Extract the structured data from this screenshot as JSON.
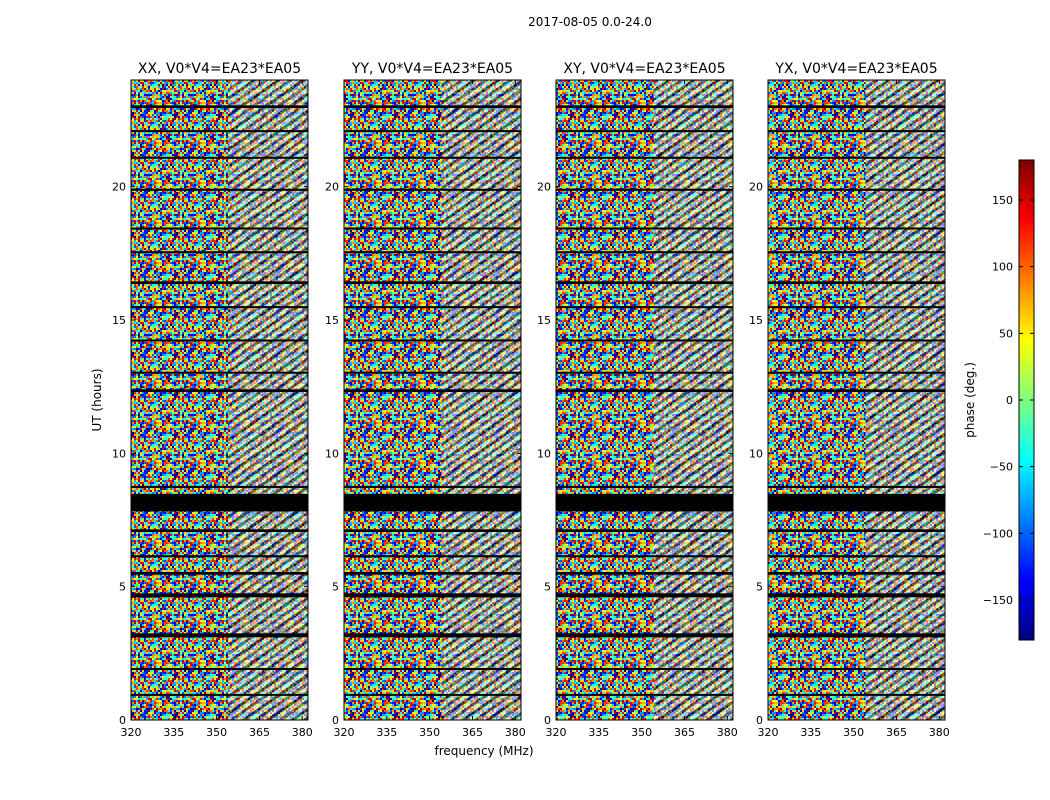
{
  "chart_data": {
    "type": "heatmap",
    "suptitle": "2017-08-05 0.0-24.0",
    "xlabel": "frequency (MHz)",
    "ylabel": "UT (hours)",
    "xlim": [
      320,
      382
    ],
    "ylim": [
      0,
      24
    ],
    "xticks": [
      320,
      335,
      350,
      365,
      380
    ],
    "yticks": [
      0,
      5,
      10,
      15,
      20
    ],
    "panels": [
      {
        "title": "XX, V0*V4=EA23*EA05"
      },
      {
        "title": "YY, V0*V4=EA23*EA05"
      },
      {
        "title": "XY, V0*V4=EA23*EA05"
      },
      {
        "title": "YX, V0*V4=EA23*EA05"
      }
    ],
    "colorbar": {
      "label": "phase (deg.)",
      "range": [
        -180,
        180
      ],
      "ticks": [
        -150,
        -100,
        -50,
        0,
        50,
        100,
        150
      ],
      "colormap": [
        "#00007f",
        "#0000ff",
        "#007fff",
        "#00ffff",
        "#7fff7f",
        "#ffff00",
        "#ff7f00",
        "#ff0000",
        "#7f0000"
      ]
    },
    "flagged_hours": [
      [
        0.92,
        0.98
      ],
      [
        1.88,
        1.95
      ],
      [
        3.1,
        3.25
      ],
      [
        4.6,
        4.75
      ],
      [
        5.45,
        5.55
      ],
      [
        6.1,
        6.18
      ],
      [
        7.05,
        7.15
      ],
      [
        7.82,
        8.48
      ],
      [
        8.7,
        8.78
      ],
      [
        12.3,
        12.4
      ],
      [
        13.0,
        13.06
      ],
      [
        14.2,
        14.27
      ],
      [
        15.45,
        15.52
      ],
      [
        16.35,
        16.45
      ],
      [
        17.5,
        17.58
      ],
      [
        18.4,
        18.47
      ],
      [
        19.85,
        19.92
      ],
      [
        21.05,
        21.12
      ],
      [
        22.05,
        22.12
      ],
      [
        22.95,
        23.05
      ]
    ]
  }
}
